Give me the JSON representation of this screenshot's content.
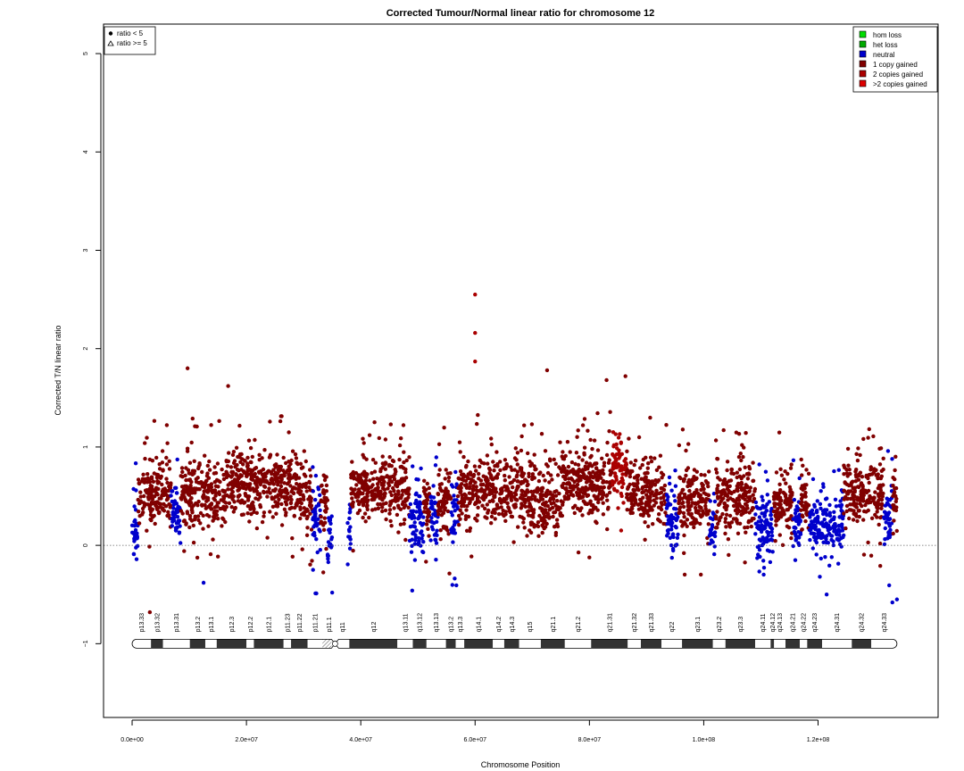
{
  "chart_data": {
    "type": "scatter",
    "title": "Corrected Tumour/Normal linear ratio for chromosome  12",
    "xlabel": "Chromosome Position",
    "ylabel": "Corrected T/N linear ratio",
    "xlim": [
      -5000000,
      141000000
    ],
    "ylim": [
      -1.75,
      5.3
    ],
    "x_ticks": [
      0,
      20000000,
      40000000,
      60000000,
      80000000,
      100000000,
      120000000
    ],
    "x_tick_labels": [
      "0.0e+00",
      "2.0e+07",
      "4.0e+07",
      "6.0e+07",
      "8.0e+07",
      "1.0e+08",
      "1.2e+08"
    ],
    "y_ticks": [
      -1,
      0,
      1,
      2,
      3,
      4,
      5
    ],
    "y_tick_labels": [
      "−1",
      "0",
      "1",
      "2",
      "3",
      "4",
      "5"
    ],
    "reference_line_y": 0,
    "grid": false,
    "shape_legend": {
      "placement": "top-left",
      "entries": [
        {
          "symbol": "dot",
          "label": "ratio < 5"
        },
        {
          "symbol": "triangle",
          "label": "ratio >= 5"
        }
      ]
    },
    "color_legend": {
      "placement": "top-right",
      "entries": [
        {
          "label": "hom loss",
          "color": "#00dd00"
        },
        {
          "label": "het loss",
          "color": "#00aa00"
        },
        {
          "label": "neutral",
          "color": "#0000cc"
        },
        {
          "label": "1 copy gained",
          "color": "#800000"
        },
        {
          "label": "2 copies gained",
          "color": "#aa0000"
        },
        {
          "label": ">2 copies gained",
          "color": "#dd0000"
        }
      ]
    },
    "segments": [
      {
        "start": 0,
        "end": 1000000,
        "state": "neutral",
        "mean": 0.1,
        "spread": 0.3
      },
      {
        "start": 1000000,
        "end": 6800000,
        "state": "1 copy gained",
        "mean": 0.52,
        "spread": 0.3
      },
      {
        "start": 6800000,
        "end": 8500000,
        "state": "neutral",
        "mean": 0.35,
        "spread": 0.28
      },
      {
        "start": 8500000,
        "end": 16500000,
        "state": "1 copy gained",
        "mean": 0.52,
        "spread": 0.3
      },
      {
        "start": 16500000,
        "end": 19500000,
        "state": "1 copy gained",
        "mean": 0.68,
        "spread": 0.3
      },
      {
        "start": 19500000,
        "end": 30000000,
        "state": "1 copy gained",
        "mean": 0.6,
        "spread": 0.3
      },
      {
        "start": 30000000,
        "end": 31500000,
        "state": "1 copy gained",
        "mean": 0.5,
        "spread": 0.3
      },
      {
        "start": 31500000,
        "end": 33000000,
        "state": "neutral",
        "mean": 0.22,
        "spread": 0.28
      },
      {
        "start": 33000000,
        "end": 34200000,
        "state": "1 copy gained",
        "mean": 0.45,
        "spread": 0.3
      },
      {
        "start": 34200000,
        "end": 35000000,
        "state": "neutral",
        "mean": 0.1,
        "spread": 0.3
      },
      {
        "start": 37700000,
        "end": 38300000,
        "state": "neutral",
        "mean": 0.1,
        "spread": 0.3
      },
      {
        "start": 38300000,
        "end": 48500000,
        "state": "1 copy gained",
        "mean": 0.58,
        "spread": 0.3
      },
      {
        "start": 48500000,
        "end": 51000000,
        "state": "neutral",
        "mean": 0.2,
        "spread": 0.28
      },
      {
        "start": 51000000,
        "end": 52200000,
        "state": "1 copy gained",
        "mean": 0.45,
        "spread": 0.3
      },
      {
        "start": 52200000,
        "end": 53500000,
        "state": "neutral",
        "mean": 0.25,
        "spread": 0.28
      },
      {
        "start": 53500000,
        "end": 55800000,
        "state": "1 copy gained",
        "mean": 0.45,
        "spread": 0.3
      },
      {
        "start": 55800000,
        "end": 57000000,
        "state": "neutral",
        "mean": 0.3,
        "spread": 0.28
      },
      {
        "start": 57000000,
        "end": 68500000,
        "state": "1 copy gained",
        "mean": 0.55,
        "spread": 0.3
      },
      {
        "start": 68500000,
        "end": 75000000,
        "state": "1 copy gained",
        "mean": 0.48,
        "spread": 0.3
      },
      {
        "start": 75000000,
        "end": 84000000,
        "state": "1 copy gained",
        "mean": 0.62,
        "spread": 0.3
      },
      {
        "start": 84000000,
        "end": 86500000,
        "state": "2 copies gained",
        "mean": 0.8,
        "spread": 0.3
      },
      {
        "start": 86500000,
        "end": 93500000,
        "state": "1 copy gained",
        "mean": 0.55,
        "spread": 0.3
      },
      {
        "start": 93500000,
        "end": 95500000,
        "state": "neutral",
        "mean": 0.25,
        "spread": 0.28
      },
      {
        "start": 95500000,
        "end": 101000000,
        "state": "1 copy gained",
        "mean": 0.45,
        "spread": 0.3
      },
      {
        "start": 101000000,
        "end": 102000000,
        "state": "neutral",
        "mean": 0.2,
        "spread": 0.28
      },
      {
        "start": 102000000,
        "end": 109000000,
        "state": "1 copy gained",
        "mean": 0.5,
        "spread": 0.3
      },
      {
        "start": 109000000,
        "end": 112200000,
        "state": "neutral",
        "mean": 0.15,
        "spread": 0.28
      },
      {
        "start": 112200000,
        "end": 115500000,
        "state": "1 copy gained",
        "mean": 0.45,
        "spread": 0.3
      },
      {
        "start": 115500000,
        "end": 117000000,
        "state": "neutral",
        "mean": 0.2,
        "spread": 0.28
      },
      {
        "start": 117000000,
        "end": 118500000,
        "state": "1 copy gained",
        "mean": 0.45,
        "spread": 0.3
      },
      {
        "start": 118500000,
        "end": 124500000,
        "state": "neutral",
        "mean": 0.22,
        "spread": 0.22
      },
      {
        "start": 124500000,
        "end": 131500000,
        "state": "1 copy gained",
        "mean": 0.55,
        "spread": 0.3
      },
      {
        "start": 131500000,
        "end": 133000000,
        "state": "neutral",
        "mean": 0.25,
        "spread": 0.28
      },
      {
        "start": 133000000,
        "end": 133800000,
        "state": "1 copy gained",
        "mean": 0.5,
        "spread": 0.3
      }
    ],
    "outliers": [
      {
        "x": 60000000,
        "y": 2.55,
        "state": "2 copies gained"
      },
      {
        "x": 60000000,
        "y": 2.16,
        "state": "2 copies gained"
      },
      {
        "x": 60000000,
        "y": 1.87,
        "state": "2 copies gained"
      },
      {
        "x": 9700000,
        "y": 1.8,
        "state": "1 copy gained"
      },
      {
        "x": 72600000,
        "y": 1.78,
        "state": "1 copy gained"
      },
      {
        "x": 86300000,
        "y": 1.72,
        "state": "1 copy gained"
      },
      {
        "x": 16800000,
        "y": 1.62,
        "state": "1 copy gained"
      },
      {
        "x": 83000000,
        "y": 1.68,
        "state": "1 copy gained"
      },
      {
        "x": 3100000,
        "y": -0.68,
        "state": "1 copy gained"
      },
      {
        "x": 133000000,
        "y": -0.58,
        "state": "neutral"
      },
      {
        "x": 133800000,
        "y": -0.55,
        "state": "neutral"
      },
      {
        "x": 121500000,
        "y": -0.5,
        "state": "neutral"
      },
      {
        "x": 35000000,
        "y": -0.48,
        "state": "neutral"
      },
      {
        "x": 49000000,
        "y": -0.46,
        "state": "neutral"
      },
      {
        "x": 12500000,
        "y": -0.38,
        "state": "neutral"
      }
    ],
    "ideogram": {
      "y": -1,
      "centromere": 35500000,
      "end": 133800000,
      "stalk": [
        33000000,
        35000000
      ],
      "bands": [
        {
          "name": "p13.33",
          "start": 0,
          "end": 3300000,
          "stain": "gneg"
        },
        {
          "name": "p13.32",
          "start": 3300000,
          "end": 5400000,
          "stain": "gpos"
        },
        {
          "name": "p13.31",
          "start": 5400000,
          "end": 10100000,
          "stain": "gneg"
        },
        {
          "name": "p13.2",
          "start": 10100000,
          "end": 12800000,
          "stain": "gpos"
        },
        {
          "name": "p13.1",
          "start": 12800000,
          "end": 14800000,
          "stain": "gneg"
        },
        {
          "name": "p12.3",
          "start": 14800000,
          "end": 20000000,
          "stain": "gpos"
        },
        {
          "name": "p12.2",
          "start": 20000000,
          "end": 21300000,
          "stain": "gneg"
        },
        {
          "name": "p12.1",
          "start": 21300000,
          "end": 26500000,
          "stain": "gpos"
        },
        {
          "name": "p11.23",
          "start": 26500000,
          "end": 27800000,
          "stain": "gneg"
        },
        {
          "name": "p11.22",
          "start": 27800000,
          "end": 30700000,
          "stain": "gpos"
        },
        {
          "name": "p11.21",
          "start": 30700000,
          "end": 33300000,
          "stain": "gneg"
        },
        {
          "name": "p11.1",
          "start": 33300000,
          "end": 35500000,
          "stain": "stalk"
        },
        {
          "name": "q11",
          "start": 35500000,
          "end": 38000000,
          "stain": "gneg"
        },
        {
          "name": "q12",
          "start": 38000000,
          "end": 46400000,
          "stain": "gpos"
        },
        {
          "name": "q13.11",
          "start": 46400000,
          "end": 49100000,
          "stain": "gneg"
        },
        {
          "name": "q13.12",
          "start": 49100000,
          "end": 51500000,
          "stain": "gpos"
        },
        {
          "name": "q13.13",
          "start": 51500000,
          "end": 54900000,
          "stain": "gneg"
        },
        {
          "name": "q13.2",
          "start": 54900000,
          "end": 56600000,
          "stain": "gpos"
        },
        {
          "name": "q13.3",
          "start": 56600000,
          "end": 58100000,
          "stain": "gneg"
        },
        {
          "name": "q14.1",
          "start": 58100000,
          "end": 63100000,
          "stain": "gpos"
        },
        {
          "name": "q14.2",
          "start": 63100000,
          "end": 65100000,
          "stain": "gneg"
        },
        {
          "name": "q14.3",
          "start": 65100000,
          "end": 67700000,
          "stain": "gpos"
        },
        {
          "name": "q15",
          "start": 67700000,
          "end": 71500000,
          "stain": "gneg"
        },
        {
          "name": "q21.1",
          "start": 71500000,
          "end": 75700000,
          "stain": "gpos"
        },
        {
          "name": "q21.2",
          "start": 75700000,
          "end": 80300000,
          "stain": "gneg"
        },
        {
          "name": "q21.31",
          "start": 80300000,
          "end": 86700000,
          "stain": "gpos"
        },
        {
          "name": "q21.32",
          "start": 86700000,
          "end": 89000000,
          "stain": "gneg"
        },
        {
          "name": "q21.33",
          "start": 89000000,
          "end": 92600000,
          "stain": "gpos"
        },
        {
          "name": "q22",
          "start": 92600000,
          "end": 96200000,
          "stain": "gneg"
        },
        {
          "name": "q23.1",
          "start": 96200000,
          "end": 101600000,
          "stain": "gpos"
        },
        {
          "name": "q23.2",
          "start": 101600000,
          "end": 103800000,
          "stain": "gneg"
        },
        {
          "name": "q23.3",
          "start": 103800000,
          "end": 109000000,
          "stain": "gpos"
        },
        {
          "name": "q24.11",
          "start": 109000000,
          "end": 111700000,
          "stain": "gneg"
        },
        {
          "name": "q24.12",
          "start": 111700000,
          "end": 112300000,
          "stain": "gpos"
        },
        {
          "name": "q24.13",
          "start": 112300000,
          "end": 114300000,
          "stain": "gneg"
        },
        {
          "name": "q24.21",
          "start": 114300000,
          "end": 116800000,
          "stain": "gpos"
        },
        {
          "name": "q24.22",
          "start": 116800000,
          "end": 118100000,
          "stain": "gneg"
        },
        {
          "name": "q24.23",
          "start": 118100000,
          "end": 120700000,
          "stain": "gpos"
        },
        {
          "name": "q24.31",
          "start": 120700000,
          "end": 125900000,
          "stain": "gneg"
        },
        {
          "name": "q24.32",
          "start": 125900000,
          "end": 129300000,
          "stain": "gpos"
        },
        {
          "name": "q24.33",
          "start": 129300000,
          "end": 133800000,
          "stain": "gneg"
        }
      ]
    }
  }
}
